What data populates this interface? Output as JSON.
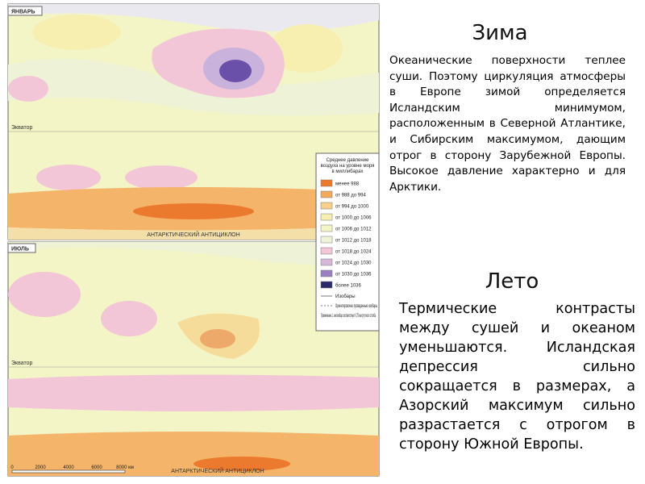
{
  "winter": {
    "map_title": "ЯНВАРЬ",
    "heading": "Зима",
    "text": "Океанические поверхности теплее суши. Поэтому циркуляция атмосферы в Европе зимой определяется Исландским минимумом, расположенным в Северной Атлантике, и Сибирским максимумом, дающим отрог в сторону Зарубежной Европы. Высокое давление характерно и для Арктики.",
    "equator": "Экватор",
    "south_label": "АНТАРКТИЧЕСКИЙ АНТИЦИКЛОН"
  },
  "summer": {
    "map_title": "ИЮЛЬ",
    "heading": "Лето",
    "text": "Термические контрасты между сушей и океаном уменьшаются. Исландская депрессия сильно сокращается в размерах, а Азорский максимум сильно разрастается с отрогом в сторону Южной Европы.",
    "equator": "Экватор",
    "south_label": "АНТАРКТИЧЕСКИЙ АНТИЦИКЛОН"
  },
  "legend": {
    "title": "Среднее давление воздуха на уровне моря в миллибарах",
    "items": [
      "менее 988",
      "от 988 до 994",
      "от 994 до 1000",
      "от 1000 до 1006",
      "от 1006 до 1012",
      "от 1012 до 1018",
      "от 1018 до 1024",
      "от 1024 до 1030",
      "от 1030 до 1036",
      "более 1036"
    ],
    "isobars": "Изобары",
    "approx_isobars": "Ориентировочно проведенные изобары",
    "note": "Примечание. 1 миллибар соответствует 0,75 мм ртутного столба"
  },
  "scale": {
    "ticks": [
      "0",
      "2000",
      "4000",
      "6000",
      "8000 км"
    ]
  }
}
